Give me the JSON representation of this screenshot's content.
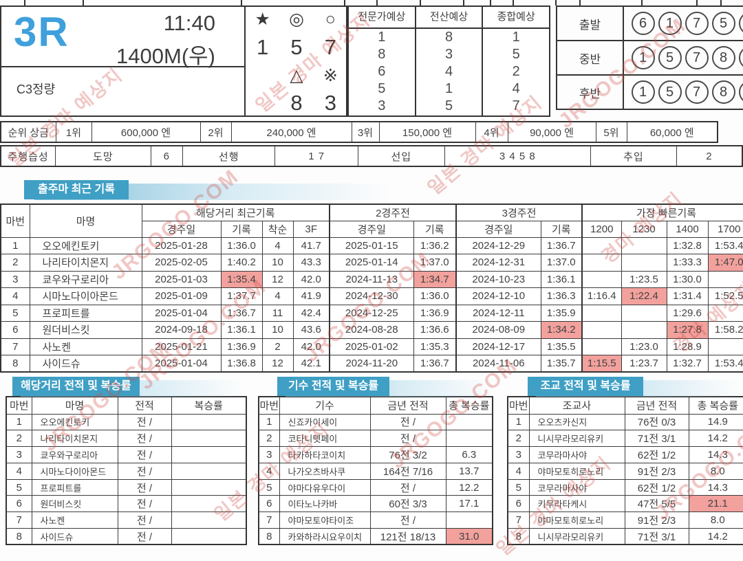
{
  "header": {
    "race_no": "3R",
    "start_time": "11:40",
    "distance": "1400M(우)",
    "race_class": "C3정량",
    "marks": [
      "★",
      "◎",
      "○",
      "1",
      "5",
      "7",
      "",
      "△",
      "※",
      "",
      "8",
      "3"
    ],
    "predictions": [
      {
        "label": "전문가예상",
        "values": [
          "1",
          "8",
          "6",
          "5",
          "3"
        ]
      },
      {
        "label": "전산예상",
        "values": [
          "8",
          "3",
          "4",
          "1",
          "5"
        ]
      },
      {
        "label": "종합예상",
        "values": [
          "1",
          "5",
          "2",
          "4",
          "7"
        ]
      }
    ],
    "phases": [
      {
        "label": "출발",
        "numbers": [
          "6",
          "1",
          "7",
          "5",
          "8"
        ]
      },
      {
        "label": "중반",
        "numbers": [
          "1",
          "5",
          "7",
          "8",
          "3"
        ]
      },
      {
        "label": "후반",
        "numbers": [
          "1",
          "5",
          "7",
          "8",
          "3"
        ]
      }
    ]
  },
  "prize": {
    "label": "순위 상금",
    "items": [
      {
        "rank": "1위",
        "amount": "600,000 엔"
      },
      {
        "rank": "2위",
        "amount": "240,000 엔"
      },
      {
        "rank": "3위",
        "amount": "150,000 엔"
      },
      {
        "rank": "4위",
        "amount": "90,000 엔"
      },
      {
        "rank": "5위",
        "amount": "60,000 엔"
      }
    ]
  },
  "habits": {
    "label": "주행습성",
    "items": [
      {
        "name": "도망",
        "value": "6"
      },
      {
        "name": "선행",
        "value": "1 7"
      },
      {
        "name": "선입",
        "value": "3 4 5 8"
      },
      {
        "name": "추입",
        "value": "2"
      }
    ]
  },
  "records": {
    "title": "출주마 최근 기록",
    "groups": [
      "해당거리 최근기록",
      "2경주전",
      "3경주전",
      "가장 빠른기록"
    ],
    "cols": {
      "no": "마번",
      "name": "마명",
      "date": "경주일",
      "time": "기록",
      "finish": "착순",
      "f3": "3F",
      "d1200": "1200",
      "d1230": "1230",
      "d1400": "1400",
      "d1700": "1700"
    },
    "rows": [
      [
        "1",
        "오오에킨토키",
        "2025-01-28",
        "1:36.0",
        "4",
        "41.7",
        "2025-01-15",
        "1:36.2",
        "2024-12-29",
        "1:36.7",
        "",
        "",
        "1:32.8",
        "1:53.4"
      ],
      [
        "2",
        "나리타이치몬지",
        "2025-02-05",
        "1:40.2",
        "10",
        "43.3",
        "2025-01-14",
        "1:37.0",
        "2024-12-31",
        "1:37.0",
        "",
        "",
        "1:33.3",
        "1:47.0"
      ],
      [
        "3",
        "쿄우와구로리아",
        "2025-01-03",
        "1:35.4",
        "12",
        "42.0",
        "2024-11-13",
        "1:34.7",
        "2024-10-23",
        "1:36.1",
        "",
        "1:23.5",
        "1:30.0",
        ""
      ],
      [
        "4",
        "시마노다이아몬드",
        "2025-01-09",
        "1:37.7",
        "4",
        "41.9",
        "2024-12-30",
        "1:36.0",
        "2024-12-10",
        "1:36.3",
        "1:16.4",
        "1:22.4",
        "1:31.4",
        "1:52.5"
      ],
      [
        "5",
        "프로피트를",
        "2025-01-04",
        "1:36.7",
        "11",
        "42.4",
        "2024-12-25",
        "1:36.9",
        "2024-12-11",
        "1:35.9",
        "",
        "",
        "1:29.6",
        ""
      ],
      [
        "6",
        "원더비스킷",
        "2024-09-18",
        "1:36.1",
        "10",
        "43.6",
        "2024-08-28",
        "1:36.6",
        "2024-08-09",
        "1:34.2",
        "",
        "",
        "1:27.8",
        "1:58.2"
      ],
      [
        "7",
        "사노켄",
        "2025-01-21",
        "1:36.9",
        "2",
        "42.0",
        "2025-01-02",
        "1:35.3",
        "2024-12-17",
        "1:35.5",
        "",
        "1:23.0",
        "1:28.9",
        ""
      ],
      [
        "8",
        "사이드슈",
        "2025-01-04",
        "1:36.8",
        "12",
        "42.1",
        "2024-11-20",
        "1:36.7",
        "2024-11-06",
        "1:35.7",
        "1:15.5",
        "1:23.7",
        "1:32.7",
        "1:53.4"
      ]
    ],
    "highlights": [
      [
        1,
        13
      ],
      [
        2,
        3
      ],
      [
        2,
        7
      ],
      [
        3,
        11
      ],
      [
        5,
        9
      ],
      [
        5,
        12
      ],
      [
        7,
        10
      ]
    ]
  },
  "distance_stats": {
    "title": "해당거리 전적 및 복승률",
    "headers": [
      "마번",
      "마명",
      "전적",
      "복승률"
    ],
    "rows": [
      [
        "1",
        "오오에킨토키",
        "전 /",
        ""
      ],
      [
        "2",
        "나리타이치몬지",
        "전 /",
        ""
      ],
      [
        "3",
        "쿄우와구로리아",
        "전 /",
        ""
      ],
      [
        "4",
        "시마노다이아몬드",
        "전 /",
        ""
      ],
      [
        "5",
        "프로피트를",
        "전 /",
        ""
      ],
      [
        "6",
        "원더비스킷",
        "전 /",
        ""
      ],
      [
        "7",
        "사노켄",
        "전 /",
        ""
      ],
      [
        "8",
        "사이드슈",
        "전 /",
        ""
      ]
    ],
    "highlights": []
  },
  "jockey_stats": {
    "title": "기수 전적 및 복승률",
    "headers": [
      "마번",
      "기수",
      "금년 전적",
      "총 복승률"
    ],
    "rows": [
      [
        "1",
        "신죠카이세이",
        "전 /",
        ""
      ],
      [
        "2",
        "코타니텟페이",
        "전 /",
        ""
      ],
      [
        "3",
        "타카하타코이치",
        "76전 3/2",
        "6.3"
      ],
      [
        "4",
        "나가오츠바사쿠",
        "164전 7/16",
        "13.7"
      ],
      [
        "5",
        "야마다유우다이",
        "전 /",
        "12.2"
      ],
      [
        "6",
        "이타노나카바",
        "60전 3/3",
        "17.1"
      ],
      [
        "7",
        "야마모토야타이조",
        "전 /",
        ""
      ],
      [
        "8",
        "카와하라시요우이치",
        "121전 18/13",
        "31.0"
      ]
    ],
    "highlights": [
      [
        7,
        3
      ]
    ]
  },
  "trainer_stats": {
    "title": "조교 전적 및 복승률",
    "headers": [
      "마번",
      "조교사",
      "금년 전적",
      "총 복승률"
    ],
    "rows": [
      [
        "1",
        "오오츠카신지",
        "76전 0/3",
        "14.9"
      ],
      [
        "2",
        "니시무라모리유키",
        "71전 3/1",
        "14.2"
      ],
      [
        "3",
        "코무라마사야",
        "62전 1/2",
        "14.3"
      ],
      [
        "4",
        "야마모토히로노리",
        "91전 2/3",
        "8.0"
      ],
      [
        "5",
        "코무라마사야",
        "62전 1/2",
        "14.3"
      ],
      [
        "6",
        "키무라타케시",
        "47전 5/5",
        "21.1"
      ],
      [
        "7",
        "야마모토히로노리",
        "91전 2/3",
        "8.0"
      ],
      [
        "8",
        "니시무라모리유키",
        "71전 3/1",
        "14.2"
      ]
    ],
    "highlights": [
      [
        5,
        3
      ]
    ]
  },
  "watermark": {
    "brand": "JRGOGO.COM",
    "tagline": "일본 경마 예상지",
    "tagline_short": "경마 예상지"
  },
  "colors": {
    "accent_blue": "#3fa0dc",
    "banner_blue": "#3f9fc4",
    "highlight_pink": "#f2a19d",
    "watermark_red": "#ce4a42"
  }
}
